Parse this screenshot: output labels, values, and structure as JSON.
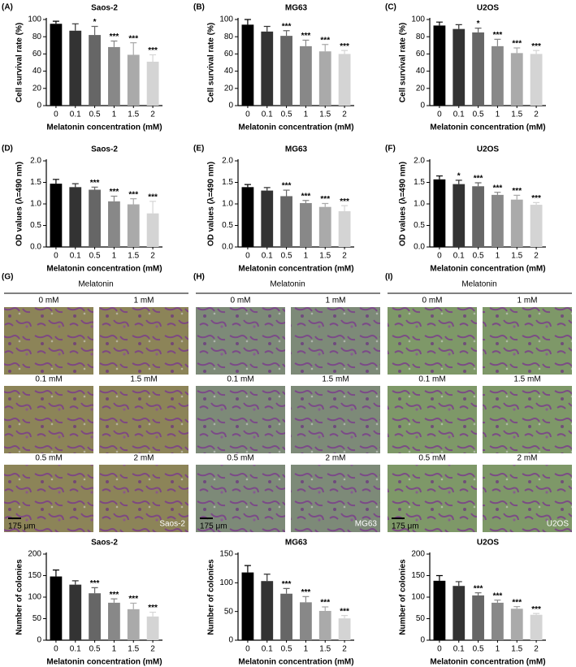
{
  "chart_data": [
    {
      "type": "bar",
      "panel": "(A)",
      "title": "Saos-2",
      "xlabel": "Melatonin concentration (mM)",
      "ylabel": "Cell survival rate (%)",
      "categories": [
        "0",
        "0.1",
        "0.5",
        "1",
        "1.5",
        "2"
      ],
      "values": [
        95,
        87,
        82,
        68,
        59,
        51
      ],
      "errors": [
        3,
        8,
        10,
        7,
        14,
        8
      ],
      "significance": [
        null,
        null,
        "*",
        "***",
        "***",
        "***"
      ],
      "colors": [
        "#000000",
        "#333333",
        "#666666",
        "#888888",
        "#aaaaaa",
        "#d4d4d4"
      ],
      "ylim": [
        0,
        100
      ],
      "yticks": [
        0,
        20,
        40,
        60,
        80,
        100
      ]
    },
    {
      "type": "bar",
      "panel": "(B)",
      "title": "MG63",
      "xlabel": "Melatonin concentration (mM)",
      "ylabel": "Cell survival rate (%)",
      "categories": [
        "0",
        "0.1",
        "0.5",
        "1",
        "1.5",
        "2"
      ],
      "values": [
        94,
        86,
        81,
        69,
        63,
        60
      ],
      "errors": [
        6,
        6,
        6,
        7,
        8,
        4
      ],
      "significance": [
        null,
        null,
        "***",
        "***",
        "***",
        "***"
      ],
      "colors": [
        "#000000",
        "#333333",
        "#666666",
        "#888888",
        "#aaaaaa",
        "#d4d4d4"
      ],
      "ylim": [
        0,
        100
      ],
      "yticks": [
        0,
        20,
        40,
        60,
        80,
        100
      ]
    },
    {
      "type": "bar",
      "panel": "(C)",
      "title": "U2OS",
      "xlabel": "Melatonin concentration (mM)",
      "ylabel": "Cell survival rate (%)",
      "categories": [
        "0",
        "0.1",
        "0.5",
        "1",
        "1.5",
        "2"
      ],
      "values": [
        93,
        89,
        85,
        69,
        61,
        60
      ],
      "errors": [
        4,
        5,
        5,
        8,
        6,
        4
      ],
      "significance": [
        null,
        null,
        "*",
        "***",
        "***",
        "***"
      ],
      "colors": [
        "#000000",
        "#333333",
        "#666666",
        "#888888",
        "#aaaaaa",
        "#d4d4d4"
      ],
      "ylim": [
        0,
        100
      ],
      "yticks": [
        0,
        20,
        40,
        60,
        80,
        100
      ]
    },
    {
      "type": "bar",
      "panel": "(D)",
      "title": "Saos-2",
      "xlabel": "Melatonin concentration (mM)",
      "ylabel": "OD values (λ=490 nm)",
      "categories": [
        "0",
        "0.1",
        "0.5",
        "1",
        "1.5",
        "2"
      ],
      "values": [
        1.47,
        1.39,
        1.33,
        1.06,
        0.99,
        0.78
      ],
      "errors": [
        0.1,
        0.08,
        0.06,
        0.12,
        0.13,
        0.28
      ],
      "significance": [
        null,
        null,
        "***",
        "***",
        "***",
        "***"
      ],
      "colors": [
        "#000000",
        "#333333",
        "#666666",
        "#888888",
        "#aaaaaa",
        "#d4d4d4"
      ],
      "ylim": [
        0,
        2
      ],
      "yticks": [
        {
          "value": 0,
          "label": "0.0"
        },
        {
          "value": 0.5,
          "label": "0.5"
        },
        {
          "value": 1,
          "label": "1.0"
        },
        {
          "value": 1.5,
          "label": "1.5"
        },
        {
          "value": 2,
          "label": "2.0"
        }
      ]
    },
    {
      "type": "bar",
      "panel": "(E)",
      "title": "MG63",
      "xlabel": "Melatonin concentration (mM)",
      "ylabel": "OD values (λ=490 nm)",
      "categories": [
        "0",
        "0.1",
        "0.5",
        "1",
        "1.5",
        "2"
      ],
      "values": [
        1.39,
        1.31,
        1.18,
        1.02,
        0.93,
        0.83
      ],
      "errors": [
        0.06,
        0.07,
        0.14,
        0.06,
        0.08,
        0.13
      ],
      "significance": [
        null,
        null,
        "***",
        "***",
        "***",
        "***"
      ],
      "colors": [
        "#000000",
        "#333333",
        "#666666",
        "#888888",
        "#aaaaaa",
        "#d4d4d4"
      ],
      "ylim": [
        0,
        2
      ],
      "yticks": [
        {
          "value": 0,
          "label": "0.0"
        },
        {
          "value": 0.5,
          "label": "0.5"
        },
        {
          "value": 1,
          "label": "1.0"
        },
        {
          "value": 1.5,
          "label": "1.5"
        },
        {
          "value": 2,
          "label": "2.0"
        }
      ]
    },
    {
      "type": "bar",
      "panel": "(F)",
      "title": "U2OS",
      "xlabel": "Melatonin concentration (mM)",
      "ylabel": "OD values (λ=490 nm)",
      "categories": [
        "0",
        "0.1",
        "0.5",
        "1",
        "1.5",
        "2"
      ],
      "values": [
        1.57,
        1.46,
        1.41,
        1.21,
        1.1,
        0.98
      ],
      "errors": [
        0.08,
        0.09,
        0.08,
        0.06,
        0.1,
        0.05
      ],
      "significance": [
        null,
        "*",
        "***",
        "***",
        "***",
        "***"
      ],
      "colors": [
        "#000000",
        "#333333",
        "#666666",
        "#888888",
        "#aaaaaa",
        "#d4d4d4"
      ],
      "ylim": [
        0,
        2
      ],
      "yticks": [
        {
          "value": 0,
          "label": "0.0"
        },
        {
          "value": 0.5,
          "label": "0.5"
        },
        {
          "value": 1,
          "label": "1.0"
        },
        {
          "value": 1.5,
          "label": "1.5"
        },
        {
          "value": 2,
          "label": "2.0"
        }
      ]
    },
    {
      "type": "bar",
      "title": "Saos-2",
      "xlabel": "Melatonin concentration (mM)",
      "ylabel": "Number of colonies",
      "categories": [
        "0",
        "0.1",
        "0.5",
        "1",
        "1.5",
        "2"
      ],
      "values": [
        148,
        129,
        109,
        87,
        72,
        55
      ],
      "errors": [
        15,
        9,
        13,
        9,
        14,
        10
      ],
      "significance": [
        null,
        null,
        "***",
        "***",
        "***",
        "***"
      ],
      "colors": [
        "#000000",
        "#333333",
        "#666666",
        "#888888",
        "#aaaaaa",
        "#d4d4d4"
      ],
      "ylim": [
        0,
        200
      ],
      "yticks": [
        0,
        50,
        100,
        150,
        200
      ]
    },
    {
      "type": "bar",
      "title": "MG63",
      "xlabel": "Melatonin concentration (mM)",
      "ylabel": "Number of colonies",
      "categories": [
        "0",
        "0.1",
        "0.5",
        "1",
        "1.5",
        "2"
      ],
      "values": [
        118,
        103,
        81,
        66,
        51,
        38
      ],
      "errors": [
        12,
        12,
        9,
        10,
        7,
        5
      ],
      "significance": [
        null,
        null,
        "***",
        "***",
        "***",
        "***"
      ],
      "colors": [
        "#000000",
        "#333333",
        "#666666",
        "#888888",
        "#aaaaaa",
        "#d4d4d4"
      ],
      "ylim": [
        0,
        150
      ],
      "yticks": [
        0,
        50,
        100,
        150
      ]
    },
    {
      "type": "bar",
      "title": "U2OS",
      "xlabel": "Melatonin concentration (mM)",
      "ylabel": "Number of colonies",
      "categories": [
        "0",
        "0.1",
        "0.5",
        "1",
        "1.5",
        "2"
      ],
      "values": [
        138,
        126,
        104,
        87,
        73,
        59
      ],
      "errors": [
        12,
        10,
        6,
        6,
        5,
        3
      ],
      "significance": [
        null,
        null,
        "***",
        "***",
        "***",
        "***"
      ],
      "colors": [
        "#000000",
        "#333333",
        "#666666",
        "#888888",
        "#aaaaaa",
        "#d4d4d4"
      ],
      "ylim": [
        0,
        200
      ],
      "yticks": [
        0,
        50,
        100,
        150,
        200
      ]
    }
  ],
  "image_panels": [
    {
      "panel": "(G)",
      "title": "Melatonin",
      "labels": [
        "0 mM",
        "1 mM",
        "0.1 mM",
        "1.5 mM",
        "0.5 mM",
        "2 mM"
      ],
      "scale_bar": "175 μm",
      "cell_line": "Saos-2",
      "background": "#8c8458"
    },
    {
      "panel": "(H)",
      "title": "Melatonin",
      "labels": [
        "0 mM",
        "1 mM",
        "0.1 mM",
        "1.5 mM",
        "0.5 mM",
        "2 mM"
      ],
      "scale_bar": "175 μm",
      "cell_line": "MG63",
      "background": "#7d8a78"
    },
    {
      "panel": "(I)",
      "title": "Melatonin",
      "labels": [
        "0 mM",
        "1 mM",
        "0.1 mM",
        "1.5 mM",
        "0.5 mM",
        "2 mM"
      ],
      "scale_bar": "175 μm",
      "cell_line": "U2OS",
      "background": "#7e9868"
    }
  ]
}
